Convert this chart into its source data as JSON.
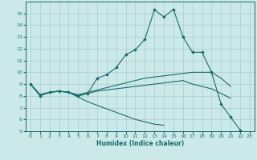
{
  "xlabel": "Humidex (Indice chaleur)",
  "xlim": [
    -0.5,
    23.5
  ],
  "ylim": [
    5,
    16
  ],
  "yticks": [
    5,
    6,
    7,
    8,
    9,
    10,
    11,
    12,
    13,
    14,
    15
  ],
  "xticks": [
    0,
    1,
    2,
    3,
    4,
    5,
    6,
    7,
    8,
    9,
    10,
    11,
    12,
    13,
    14,
    15,
    16,
    17,
    18,
    19,
    20,
    21,
    22,
    23
  ],
  "bg_color": "#cce9e9",
  "grid_color": "#aacccc",
  "line_color": "#1a6b6b",
  "lines": [
    {
      "x": [
        0,
        1,
        2,
        3,
        4,
        5,
        6,
        7,
        8,
        9,
        10,
        11,
        12,
        13,
        14,
        15,
        16,
        17,
        18,
        19,
        20,
        21,
        22
      ],
      "y": [
        9,
        8,
        8.3,
        8.4,
        8.3,
        8.0,
        8.2,
        9.5,
        9.8,
        10.4,
        11.5,
        11.9,
        12.8,
        15.3,
        14.7,
        15.35,
        13.0,
        11.7,
        11.7,
        10.0,
        7.3,
        6.2,
        5.1
      ],
      "marker": true
    },
    {
      "x": [
        0,
        1,
        2,
        3,
        4,
        5,
        6,
        7,
        8,
        9,
        10,
        11,
        12,
        13,
        14,
        15,
        16,
        17,
        18,
        19,
        20,
        21
      ],
      "y": [
        9,
        8.1,
        8.3,
        8.4,
        8.3,
        8.1,
        8.3,
        8.5,
        8.7,
        8.9,
        9.1,
        9.3,
        9.5,
        9.6,
        9.7,
        9.8,
        9.9,
        10.0,
        10.0,
        10.0,
        9.5,
        8.8
      ],
      "marker": false
    },
    {
      "x": [
        0,
        1,
        2,
        3,
        4,
        5,
        6,
        7,
        8,
        9,
        10,
        11,
        12,
        13,
        14,
        15,
        16,
        17,
        18,
        19,
        20,
        21
      ],
      "y": [
        9,
        8.1,
        8.3,
        8.4,
        8.3,
        8.0,
        8.2,
        8.4,
        8.5,
        8.6,
        8.7,
        8.8,
        8.9,
        9.0,
        9.1,
        9.2,
        9.3,
        9.0,
        8.8,
        8.6,
        8.2,
        7.8
      ],
      "marker": false
    },
    {
      "x": [
        0,
        1,
        2,
        3,
        4,
        5,
        6,
        7,
        8,
        9,
        10,
        11,
        12,
        13,
        14
      ],
      "y": [
        9,
        8.1,
        8.3,
        8.4,
        8.3,
        7.9,
        7.5,
        7.2,
        6.9,
        6.6,
        6.3,
        6.0,
        5.8,
        5.6,
        5.5
      ],
      "marker": false
    }
  ]
}
